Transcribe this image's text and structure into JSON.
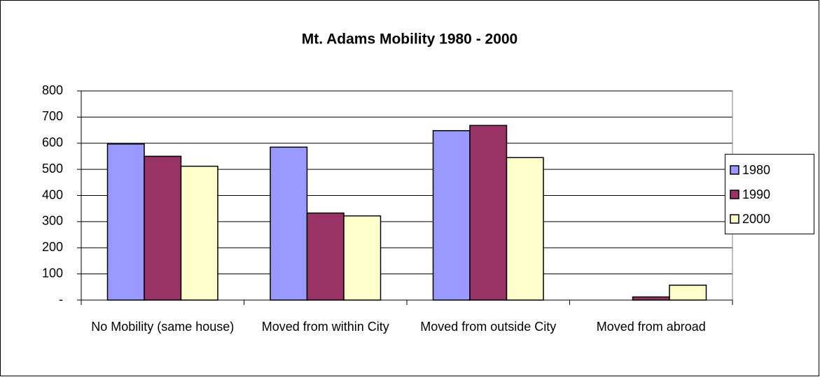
{
  "chart_data": {
    "type": "bar",
    "title": "Mt. Adams Mobility 1980 - 2000",
    "categories": [
      "No Mobility (same house)",
      "Moved from within City",
      "Moved from outside City",
      "Moved from abroad"
    ],
    "series": [
      {
        "name": "1980",
        "color": "#9999ff",
        "values": [
          597,
          585,
          648,
          0
        ]
      },
      {
        "name": "1990",
        "color": "#993366",
        "values": [
          550,
          333,
          668,
          12
        ]
      },
      {
        "name": "2000",
        "color": "#ffffcc",
        "values": [
          512,
          322,
          545,
          57
        ]
      }
    ],
    "ylim": [
      0,
      800
    ],
    "yticks": [
      {
        "value": 0,
        "label": "-"
      },
      100,
      200,
      300,
      400,
      500,
      600,
      700,
      800
    ],
    "grid": true,
    "legend": "right"
  }
}
